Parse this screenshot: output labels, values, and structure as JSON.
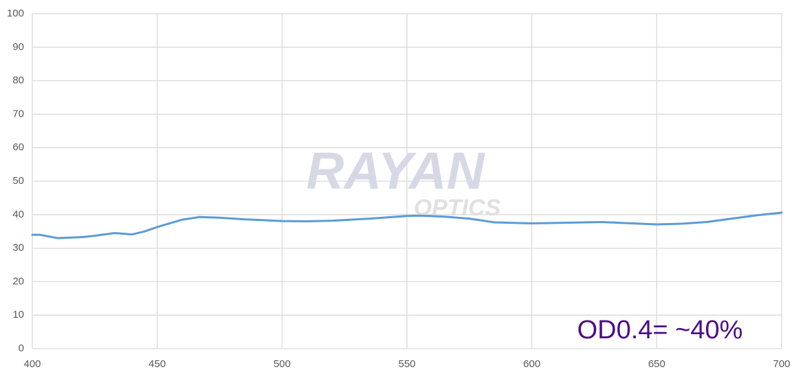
{
  "chart_data": {
    "type": "line",
    "x": [
      400,
      403,
      410,
      420,
      425,
      433,
      440,
      445,
      450,
      460,
      467,
      475,
      485,
      500,
      510,
      520,
      535,
      550,
      555,
      565,
      575,
      585,
      600,
      615,
      628,
      640,
      650,
      660,
      670,
      680,
      690,
      700
    ],
    "series": [
      {
        "color": "#5b9bd5",
        "values": [
          34,
          34,
          33,
          33.3,
          33.7,
          34.5,
          34.1,
          35,
          36.3,
          38.5,
          39.3,
          39.1,
          38.6,
          38.1,
          38,
          38.2,
          38.8,
          39.6,
          39.7,
          39.4,
          38.8,
          37.7,
          37.4,
          37.6,
          37.8,
          37.4,
          37.1,
          37.3,
          37.8,
          38.8,
          39.8,
          40.6
        ]
      }
    ],
    "xlim": [
      400,
      700
    ],
    "xticks": [
      400,
      450,
      500,
      550,
      600,
      650,
      700
    ],
    "ylim": [
      0,
      100
    ],
    "yticks": [
      0,
      10,
      20,
      30,
      40,
      50,
      60,
      70,
      80,
      90,
      100
    ],
    "grid": true,
    "annotation": "OD0.4= ~40%",
    "watermark": [
      "RAYAN",
      "OPTICS"
    ]
  }
}
